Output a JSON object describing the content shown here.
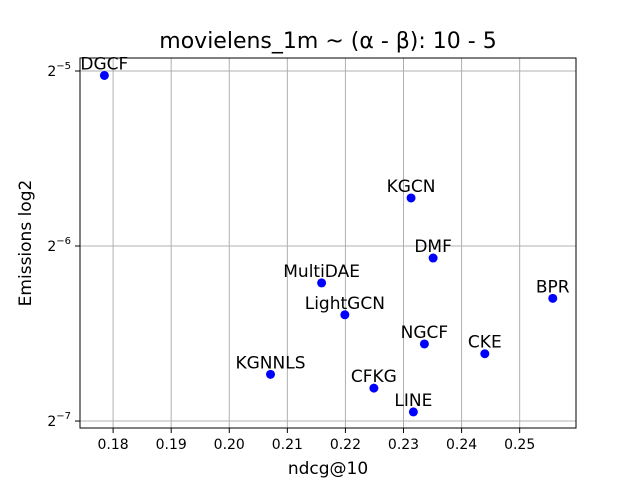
{
  "chart_data": {
    "type": "scatter",
    "title": "movielens_1m ~ (α - β): 10 - 5",
    "xlabel": "ndcg@10",
    "ylabel": "Emissions log2",
    "y_scale": "log2",
    "xlim": [
      0.1743,
      0.2597
    ],
    "ylim": [
      0.0076,
      0.0329
    ],
    "grid": true,
    "marker_color": "#0000ff",
    "x_ticks": [
      {
        "value": 0.18,
        "label": "0.18"
      },
      {
        "value": 0.19,
        "label": "0.19"
      },
      {
        "value": 0.2,
        "label": "0.20"
      },
      {
        "value": 0.21,
        "label": "0.21"
      },
      {
        "value": 0.22,
        "label": "0.22"
      },
      {
        "value": 0.23,
        "label": "0.23"
      },
      {
        "value": 0.24,
        "label": "0.24"
      },
      {
        "value": 0.25,
        "label": "0.25"
      }
    ],
    "y_ticks": [
      {
        "value": 0.03125,
        "base": "2",
        "exp": "−5"
      },
      {
        "value": 0.015625,
        "base": "2",
        "exp": "−6"
      },
      {
        "value": 0.0078125,
        "base": "2",
        "exp": "−7"
      }
    ],
    "points": [
      {
        "label": "DGCF",
        "x": 0.1785,
        "y": 0.0307
      },
      {
        "label": "KGCN",
        "x": 0.2313,
        "y": 0.0189
      },
      {
        "label": "DMF",
        "x": 0.2351,
        "y": 0.0149
      },
      {
        "label": "MultiDAE",
        "x": 0.2159,
        "y": 0.0135
      },
      {
        "label": "BPR",
        "x": 0.2557,
        "y": 0.0127
      },
      {
        "label": "LightGCN",
        "x": 0.2199,
        "y": 0.0119
      },
      {
        "label": "NGCF",
        "x": 0.2336,
        "y": 0.0106
      },
      {
        "label": "CKE",
        "x": 0.244,
        "y": 0.0102
      },
      {
        "label": "KGNNLS",
        "x": 0.2071,
        "y": 0.0094
      },
      {
        "label": "CFKG",
        "x": 0.2249,
        "y": 0.0089
      },
      {
        "label": "LINE",
        "x": 0.2317,
        "y": 0.0081
      }
    ]
  }
}
